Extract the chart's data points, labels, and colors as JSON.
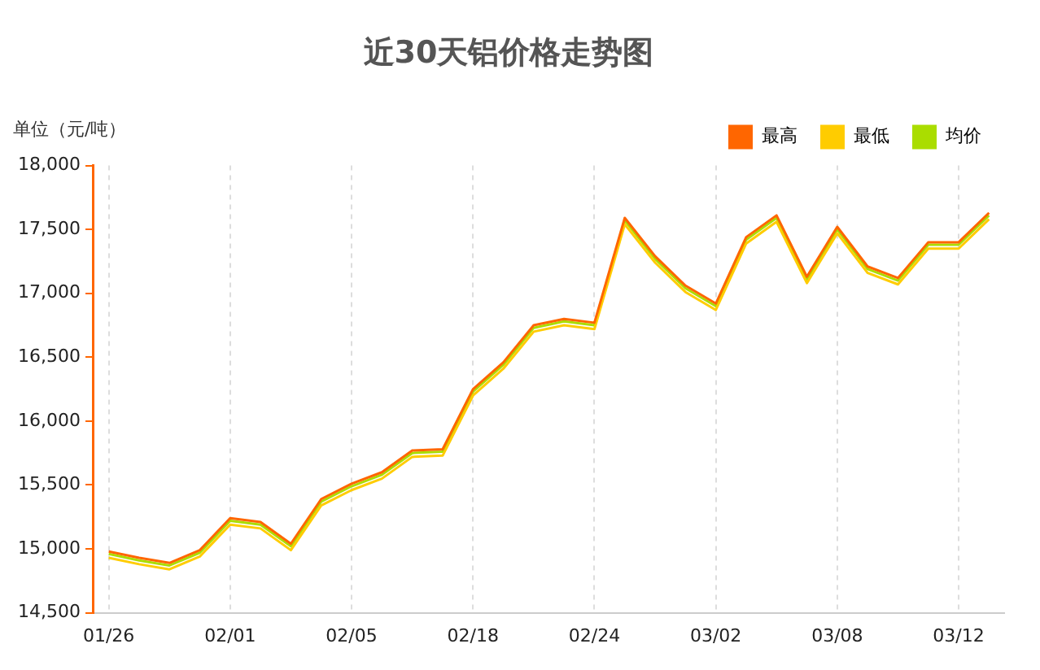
{
  "chart_data": {
    "type": "line",
    "title": "近30天铝价格走势图",
    "ylabel": "单位（元/吨）",
    "categories": [
      "01/26",
      null,
      null,
      null,
      "02/01",
      null,
      null,
      null,
      "02/05",
      null,
      null,
      null,
      "02/18",
      null,
      null,
      null,
      "02/24",
      null,
      null,
      null,
      "03/02",
      null,
      null,
      null,
      "03/08",
      null,
      null,
      null,
      "03/12",
      null
    ],
    "series": [
      {
        "name": "最高",
        "color": "#ff6600",
        "values": [
          14980,
          14930,
          14890,
          14990,
          15240,
          15210,
          15040,
          15390,
          15510,
          15600,
          15770,
          15780,
          16250,
          16460,
          16750,
          16800,
          16770,
          17590,
          17290,
          17060,
          16920,
          17440,
          17610,
          17130,
          17520,
          17210,
          17120,
          17400,
          17400,
          17630
        ]
      },
      {
        "name": "最低",
        "color": "#ffcc00",
        "values": [
          14930,
          14880,
          14840,
          14940,
          15190,
          15160,
          14990,
          15340,
          15460,
          15550,
          15720,
          15730,
          16200,
          16410,
          16700,
          16750,
          16720,
          17540,
          17240,
          17010,
          16870,
          17390,
          17560,
          17080,
          17470,
          17160,
          17070,
          17350,
          17350,
          17580
        ]
      },
      {
        "name": "均价",
        "color": "#aadd00",
        "values": [
          14960,
          14910,
          14870,
          14970,
          15220,
          15190,
          15020,
          15370,
          15490,
          15580,
          15750,
          15760,
          16230,
          16440,
          16730,
          16780,
          16750,
          17570,
          17270,
          17040,
          16900,
          17420,
          17590,
          17110,
          17500,
          17190,
          17100,
          17380,
          17380,
          17610
        ]
      }
    ],
    "ylim": [
      14500,
      18000
    ],
    "yticks": [
      {
        "value": 14500,
        "label": "14,500"
      },
      {
        "value": 15000,
        "label": "15,000"
      },
      {
        "value": 15500,
        "label": "15,500"
      },
      {
        "value": 16000,
        "label": "16,000"
      },
      {
        "value": 16500,
        "label": "16,500"
      },
      {
        "value": 17000,
        "label": "17,000"
      },
      {
        "value": 17500,
        "label": "17,500"
      },
      {
        "value": 18000,
        "label": "18,000"
      }
    ],
    "grid": "x",
    "legend": "top right",
    "marker": "none",
    "line_style": "solid"
  }
}
